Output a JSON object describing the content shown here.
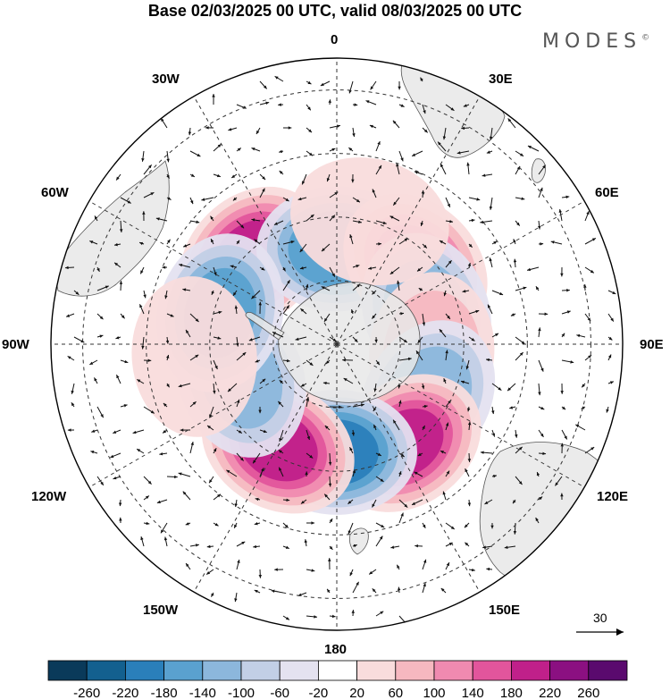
{
  "title": "Base 02/03/2025 00 UTC, valid 08/03/2025 00 UTC",
  "brand": "MODES",
  "brand_mark": "©",
  "longitude_labels": {
    "lon_0": "0",
    "lon_30e": "30E",
    "lon_60e": "60E",
    "lon_90e": "90E",
    "lon_120e": "120E",
    "lon_150e": "150E",
    "lon_180": "180",
    "lon_150w": "150W",
    "lon_120w": "120W",
    "lon_90w": "90W",
    "lon_60w": "60W",
    "lon_30w": "30W"
  },
  "reference_vector": {
    "label": "30",
    "icon": "arrow-right-icon"
  },
  "colorbar": {
    "ticks": [
      "-260",
      "-220",
      "-180",
      "-140",
      "-100",
      "-60",
      "-20",
      "20",
      "60",
      "100",
      "140",
      "180",
      "220",
      "260"
    ],
    "colors": [
      "#0a3a5a",
      "#13608f",
      "#2a7fba",
      "#5aa1cf",
      "#8cb7dc",
      "#c2cfe6",
      "#e4e2f0",
      "#ffffff",
      "#f9dcdc",
      "#f6b8c0",
      "#f08ab0",
      "#e2559c",
      "#c0208a",
      "#8b1081",
      "#5a0a6e"
    ]
  },
  "anomaly_centers": [
    {
      "lon": -45,
      "colat": 38,
      "value": 200
    },
    {
      "lon": 0,
      "colat": 30,
      "value": -170
    },
    {
      "lon": 45,
      "colat": 35,
      "value": 150
    },
    {
      "lon": 70,
      "colat": 30,
      "value": -120
    },
    {
      "lon": 95,
      "colat": 30,
      "value": 80
    },
    {
      "lon": 120,
      "colat": 33,
      "value": -120
    },
    {
      "lon": 145,
      "colat": 38,
      "value": 180
    },
    {
      "lon": 180,
      "colat": 34,
      "value": -190
    },
    {
      "lon": -150,
      "colat": 37,
      "value": 190
    },
    {
      "lon": -110,
      "colat": 32,
      "value": -110
    },
    {
      "lon": -75,
      "colat": 38,
      "value": -150
    },
    {
      "lon": 15,
      "colat": 40,
      "value": 40
    },
    {
      "lon": -95,
      "colat": 45,
      "value": 30
    }
  ]
}
